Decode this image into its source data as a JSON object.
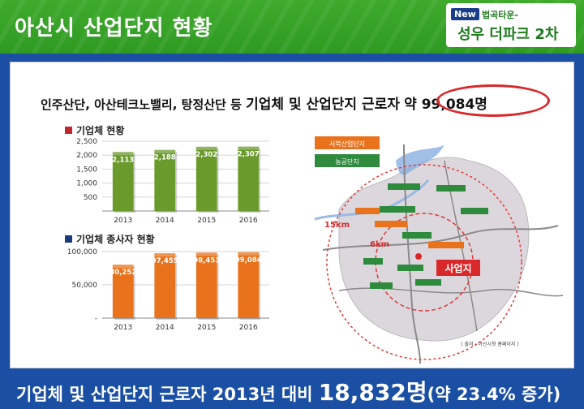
{
  "header": {
    "title": "아산시 산업단지 현황",
    "brand_new": "New",
    "brand_sub": "법곡타운-",
    "brand_main": "성우 더파크 2차"
  },
  "headline": {
    "lead": "인주산단, 아산테크노밸리, 탕정산단 등",
    "main": "기업체 및 산업단지 근로자",
    "count": "약 99,084명"
  },
  "colors": {
    "green_bar": "#6a9a2c",
    "orange_bar": "#e8731c",
    "red_square": "#c0262c",
    "navy_square": "#1b3a7a",
    "frame_blue": "#1a4fa3",
    "header_green": "#3faa2c"
  },
  "chart_data": [
    {
      "type": "bar",
      "title": "기업체 현황",
      "categories": [
        "2013",
        "2014",
        "2015",
        "2016"
      ],
      "values": [
        2113,
        2188,
        2302,
        2307
      ],
      "value_labels": [
        "2,113",
        "2,188",
        "2,302",
        "2,307"
      ],
      "yticks": [
        "2,500",
        "2,000",
        "1,500",
        "1,000",
        "500"
      ],
      "ylim": [
        0,
        2500
      ],
      "grid": true
    },
    {
      "type": "bar",
      "title": "기업체 종사자 현황",
      "categories": [
        "2013",
        "2014",
        "2015",
        "2016"
      ],
      "values": [
        80252,
        97455,
        98453,
        99084
      ],
      "value_labels": [
        "80,252",
        "97,455",
        "98,453",
        "99,084"
      ],
      "yticks": [
        "100,000",
        "50,000",
        "-"
      ],
      "ylim": [
        0,
        100000
      ],
      "grid": true
    }
  ],
  "map": {
    "legend": [
      "서북산업단지",
      "농공단지"
    ],
    "radius_labels": [
      "15km",
      "6km"
    ],
    "site_label": "사업지",
    "source": "( 출처 : 아산시청 홈페이지 )"
  },
  "footer": {
    "lead": "기업체 및 산업단지 근로자 2013년 대비",
    "big": "18,832명",
    "tail": "(약 23.4% 증가)"
  }
}
